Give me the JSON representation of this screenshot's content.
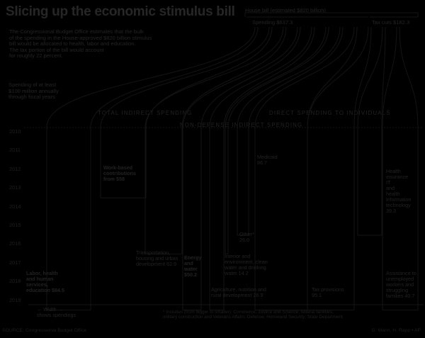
{
  "title": "Slicing up the economic stimulus bill",
  "intro": "The Congressional Budget Office estimates that the bulk\nof the spending in the House-approved $820 billion stimulus\nbill would be allocated to health, labor and education.\nThe tax portion of the bill would account\nfor roughly 22 percent.",
  "note_spending": "Spending of at least\n$100 million annually\nthrough fiscal years",
  "house_bill_label": "House bill (estimated $820 billion)",
  "spending_label": "Spending $637.3",
  "tax_cuts_label": "Tax cuts $182.3",
  "section_total_indirect": "TOTAL INDIRECT SPENDING",
  "section_direct": "DIRECT SPENDING TO INDIVIDUALS",
  "section_nondefense": "NON-DEFENSE INDIRECT SPENDING",
  "years": [
    "2010",
    "2011",
    "2012",
    "2013",
    "2014",
    "2015",
    "2016",
    "2017",
    "2018",
    "2019"
  ],
  "width_note": "← Width →\nshows spendings",
  "footnote": "* Includes (from bigger to smaller): Commerce, Justice and Science; federal facilities,\nmilitary construction and Veterans Affairs; Defense; Homeland Security; State Department",
  "source": "SOURCE: Congressional Budget Office",
  "credit": "G. Marin, H. Rapp • AP",
  "chart_data": {
    "type": "area",
    "title": "Slicing up the economic stimulus bill",
    "total": 820,
    "groups": [
      {
        "name": "Spending",
        "value": 637.3
      },
      {
        "name": "Tax cuts",
        "value": 182.3
      }
    ],
    "categories": [
      {
        "label": "Labor, health\nand human\nservices,\neducation $84.5",
        "value": 84.5,
        "start_year": "2010",
        "end_year": "2019"
      },
      {
        "label": "Work-based\ncontributions\nfrom $58",
        "value": 58,
        "start_year": "2010",
        "end_year": "2013"
      },
      {
        "label": "Transportation,\nhousing and urban\ndevelopment 62.9",
        "value": 62.9,
        "start_year": "2010",
        "end_year": "2016"
      },
      {
        "label": "Energy\nand\nwater\n$50.2",
        "value": 50.2,
        "start_year": "2010",
        "end_year": "2019"
      },
      {
        "label": "Agriculture, nutrition and\nrural development 26.9",
        "value": 26.9,
        "start_year": "2010",
        "end_year": "2019"
      },
      {
        "label": "Interior and\nenvironment, clean\nwater and drinking\nwater 14.2",
        "value": 14.2,
        "start_year": "2010",
        "end_year": "2016"
      },
      {
        "label": "Other*\n26.0",
        "value": 26.0,
        "start_year": "2010",
        "end_year": "2015"
      },
      {
        "label": "Medicaid\n86.7",
        "value": 86.7,
        "start_year": "2010",
        "end_year": "2019"
      },
      {
        "label": "Tax provisions\n95.1",
        "value": 95.1,
        "start_year": "2010",
        "end_year": "2019"
      },
      {
        "label": "Health\ninsurance\nIT\nand\nhealth\ninformation\ntechnology\n39.3",
        "value": 39.3,
        "start_year": "2010",
        "end_year": "2015"
      },
      {
        "label": "Assistance to\nunemployed\nworkers and\nstruggling\nfamilies 40.7",
        "value": 40.7,
        "start_year": "2010",
        "end_year": "2019"
      }
    ],
    "xlabel": "",
    "ylabel": ""
  }
}
